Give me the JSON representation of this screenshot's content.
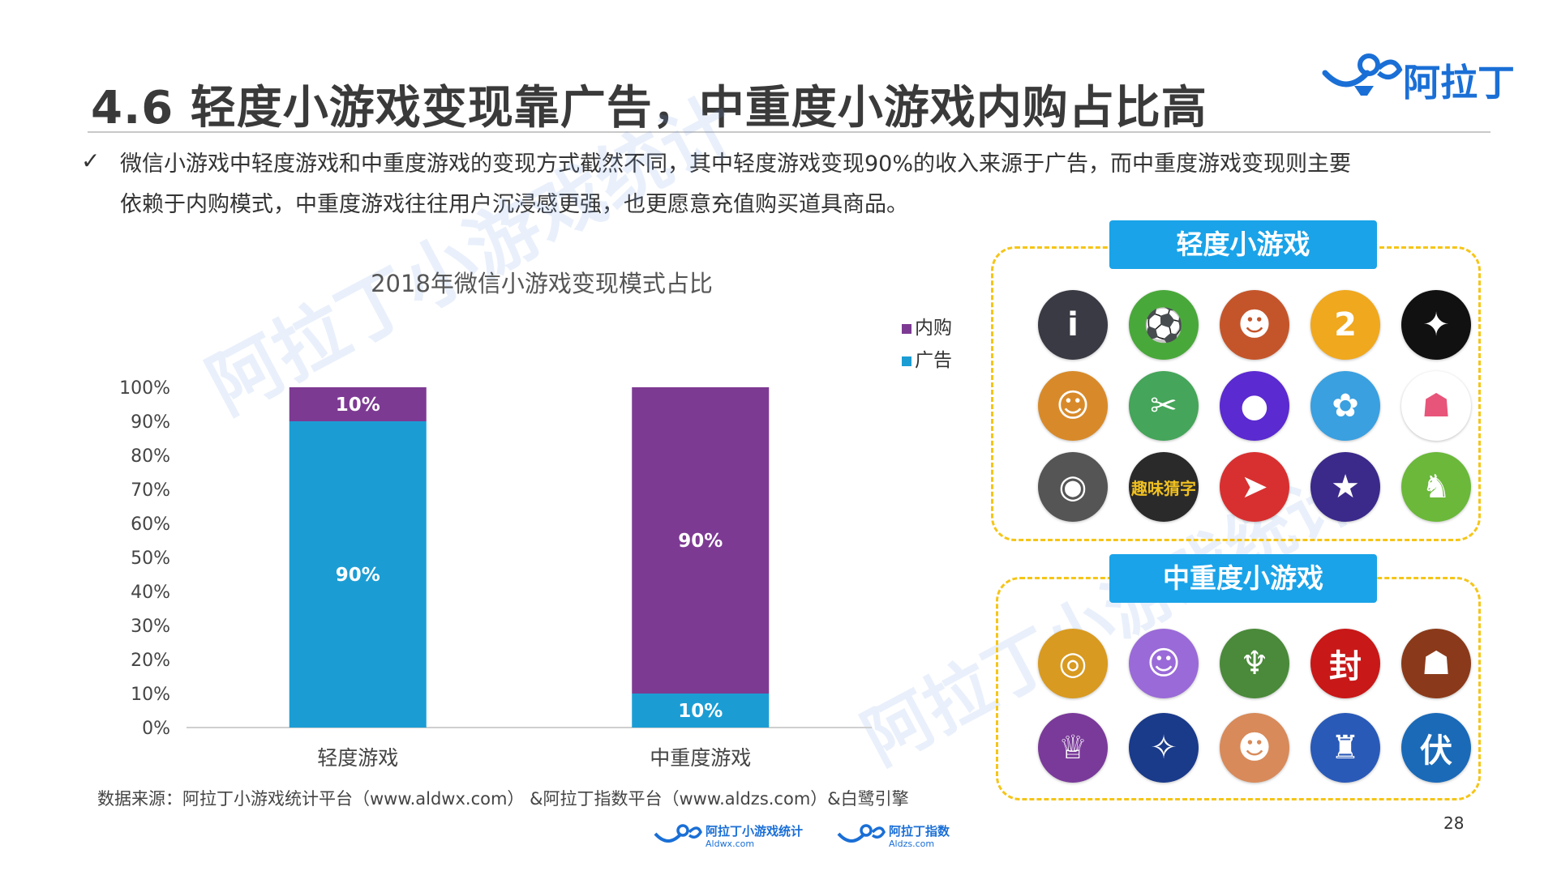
{
  "header": {
    "title": "4.6 轻度小游戏变现靠广告，中重度小游戏内购占比高",
    "brand": "阿拉丁"
  },
  "intro": {
    "bullet": "✓",
    "line1": "微信小游戏中轻度游戏和中重度游戏的变现方式截然不同，其中轻度游戏变现90%的收入来源于广告，而中重度游戏变现则主要",
    "line2": "依赖于内购模式，中重度游戏往往用户沉浸感更强，也更愿意充值购买道具商品。"
  },
  "watermark": "阿拉丁小游戏统计",
  "chart_data": {
    "type": "bar",
    "stacked": true,
    "title": "2018年微信小游戏变现模式占比",
    "categories": [
      "轻度游戏",
      "中重度游戏"
    ],
    "series": [
      {
        "name": "广告",
        "values": [
          90,
          10
        ],
        "labels": [
          "90%",
          "10%"
        ],
        "color": "#1b9dd4"
      },
      {
        "name": "内购",
        "values": [
          10,
          90
        ],
        "labels": [
          "10%",
          "90%"
        ],
        "color": "#7d3a93"
      }
    ],
    "yticks": [
      "0%",
      "10%",
      "20%",
      "30%",
      "40%",
      "50%",
      "60%",
      "70%",
      "80%",
      "90%",
      "100%"
    ],
    "ylim": [
      0,
      100
    ],
    "legend_position": "top-right",
    "legend_order": [
      "内购",
      "广告"
    ]
  },
  "source": "数据来源：阿拉丁小游戏统计平台（www.aldwx.com） &阿拉丁指数平台（www.aldzs.com）&白鹭引擎",
  "page_number": "28",
  "panels": {
    "light": {
      "title": "轻度小游戏",
      "icons": [
        {
          "name": "figure-icon",
          "color": "#3a3a44",
          "glyph": "i"
        },
        {
          "name": "runner-icon",
          "color": "#49a83a",
          "glyph": "⚽"
        },
        {
          "name": "hero-icon",
          "color": "#c4552b",
          "glyph": "☻"
        },
        {
          "name": "2048-icon",
          "color": "#f0a81e",
          "glyph": "2"
        },
        {
          "name": "stickman-icon",
          "color": "#111111",
          "glyph": "✦"
        },
        {
          "name": "monkey-icon",
          "color": "#d88a2a",
          "glyph": "☺"
        },
        {
          "name": "fruit-icon",
          "color": "#45a55a",
          "glyph": "✂"
        },
        {
          "name": "ball-icon",
          "color": "#5b2ad0",
          "glyph": "●"
        },
        {
          "name": "bird-icon",
          "color": "#3aa0e0",
          "glyph": "✿"
        },
        {
          "name": "pixel-icon",
          "color": "#ffffff",
          "glyph": "☗"
        },
        {
          "name": "robot-icon",
          "color": "#555555",
          "glyph": "◉"
        },
        {
          "name": "riddle-icon",
          "color": "#2a2a2a",
          "glyph": "趣"
        },
        {
          "name": "racecar-icon",
          "color": "#d83030",
          "glyph": "➤"
        },
        {
          "name": "shoot-icon",
          "color": "#3b2a8a",
          "glyph": "★"
        },
        {
          "name": "chicken-icon",
          "color": "#6bb83a",
          "glyph": "♞"
        }
      ],
      "riddle_text": "趣味猜字"
    },
    "heavy": {
      "title": "中重度小游戏",
      "icons": [
        {
          "name": "ring-icon",
          "color": "#d89a20",
          "glyph": "◎"
        },
        {
          "name": "cat-icon",
          "color": "#9a6ad8",
          "glyph": "☺"
        },
        {
          "name": "dragon-icon",
          "color": "#4a8a3a",
          "glyph": "♆"
        },
        {
          "name": "fengshen-icon",
          "color": "#c81818",
          "glyph": "封"
        },
        {
          "name": "general-icon",
          "color": "#8a3a1a",
          "glyph": "☗"
        },
        {
          "name": "girl-icon",
          "color": "#7a3a9a",
          "glyph": "♕"
        },
        {
          "name": "wings-icon",
          "color": "#1a3a8a",
          "glyph": "✧"
        },
        {
          "name": "boy-icon",
          "color": "#d88a5a",
          "glyph": "☻"
        },
        {
          "name": "zombie-icon",
          "color": "#2a5ab8",
          "glyph": "♜"
        },
        {
          "name": "fumo-icon",
          "color": "#1a6ab8",
          "glyph": "伏"
        }
      ]
    }
  },
  "footer": {
    "logo1_name": "阿拉丁小游戏统计",
    "logo1_url": "Aldwx.com",
    "logo2_name": "阿拉丁指数",
    "logo2_url": "Aldzs.com"
  }
}
